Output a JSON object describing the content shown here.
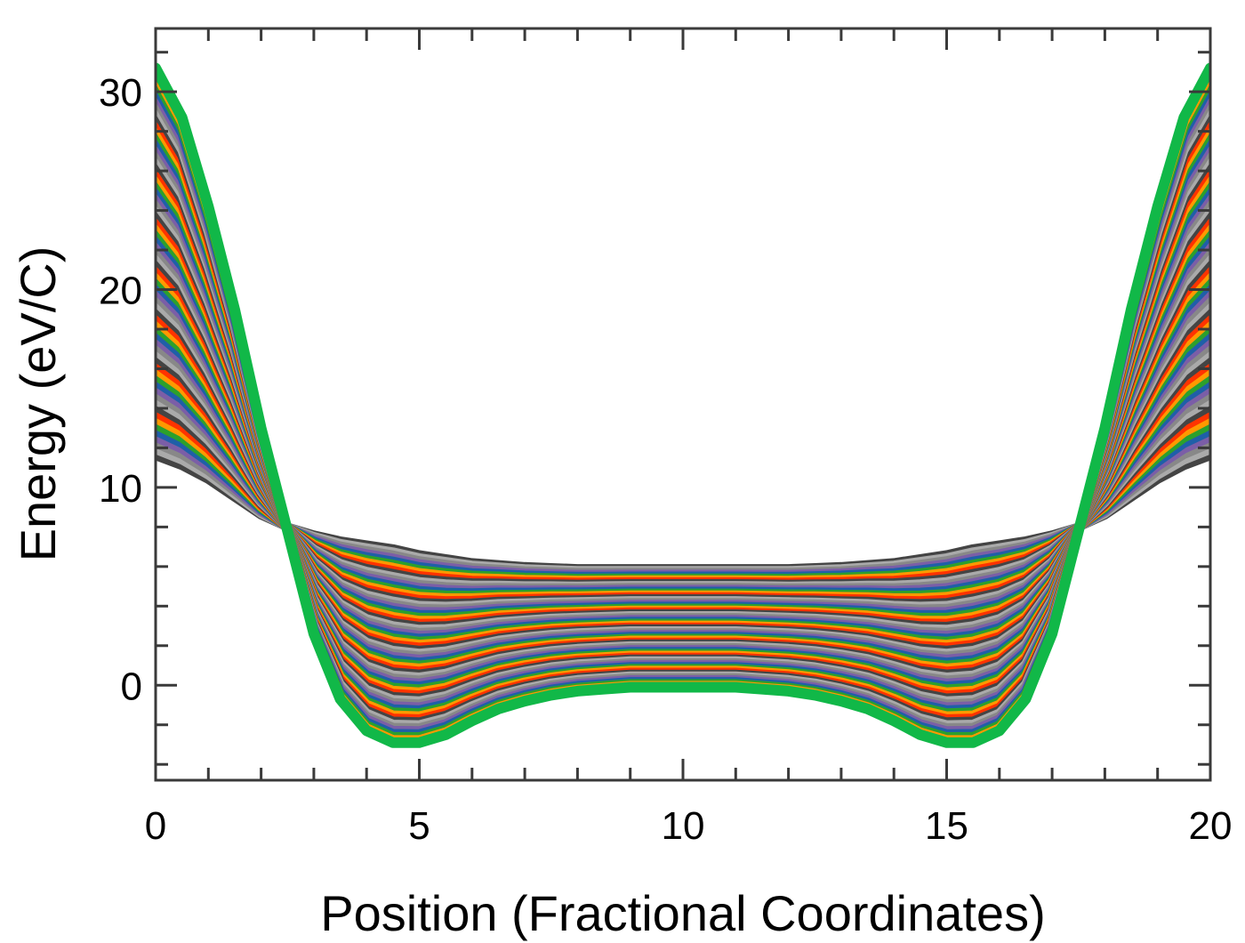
{
  "chart_data": {
    "type": "line",
    "title": "",
    "xlabel": "Position  (Fractional  Coordinates)",
    "ylabel": "Energy  (eV/C)",
    "xlim": [
      0,
      20
    ],
    "ylim": [
      -4.8,
      33.2
    ],
    "x_ticks": [
      0,
      5,
      10,
      15,
      20
    ],
    "x_tick_labels": [
      "0",
      "5",
      "10",
      "15",
      "20"
    ],
    "y_ticks": [
      0,
      10,
      20,
      30
    ],
    "y_tick_labels": [
      "0",
      "10",
      "20",
      "30"
    ],
    "x_minor_step": 1,
    "y_minor_step": 2,
    "grid": false,
    "legend": "none",
    "x": [
      0,
      0.5,
      1,
      1.5,
      2,
      2.5,
      3,
      3.5,
      4,
      4.5,
      5,
      5.5,
      6,
      6.5,
      7,
      7.5,
      8,
      8.5,
      9,
      9.5,
      10,
      10.5,
      11,
      11.5,
      12,
      12.5,
      13,
      13.5,
      14,
      14.5,
      15,
      15.5,
      16,
      16.5,
      17,
      17.5,
      18,
      18.5,
      19,
      19.5,
      20
    ],
    "series_count": 64,
    "series_palette": [
      "#ff3300",
      "#ff9900",
      "#2ca02c",
      "#1f5fa8",
      "#7b5ea7",
      "#888888",
      "#aaaaaa",
      "#444444"
    ],
    "series": [
      {
        "values": [
          31.2,
          28.7,
          24.2,
          19.0,
          13.0,
          7.8,
          2.6,
          -0.7,
          -2.3,
          -2.9,
          -2.9,
          -2.5,
          -1.8,
          -1.2,
          -0.8,
          -0.5,
          -0.3,
          -0.2,
          -0.1,
          -0.1,
          -0.1,
          -0.1,
          -0.1,
          -0.2,
          -0.3,
          -0.5,
          -0.8,
          -1.2,
          -1.8,
          -2.5,
          -2.9,
          -2.9,
          -2.3,
          -0.7,
          2.6,
          7.8,
          13.0,
          19.0,
          24.2,
          28.7,
          31.2
        ]
      },
      {
        "values": [
          11.6,
          11.1,
          10.4,
          9.5,
          8.6,
          8.0,
          7.6,
          7.3,
          7.1,
          6.9,
          6.6,
          6.4,
          6.2,
          6.1,
          6.0,
          5.95,
          5.9,
          5.9,
          5.9,
          5.9,
          5.9,
          5.9,
          5.9,
          5.9,
          5.9,
          5.95,
          6.0,
          6.1,
          6.2,
          6.4,
          6.6,
          6.9,
          7.1,
          7.3,
          7.6,
          8.0,
          8.6,
          9.5,
          10.4,
          11.1,
          11.6
        ]
      }
    ]
  }
}
